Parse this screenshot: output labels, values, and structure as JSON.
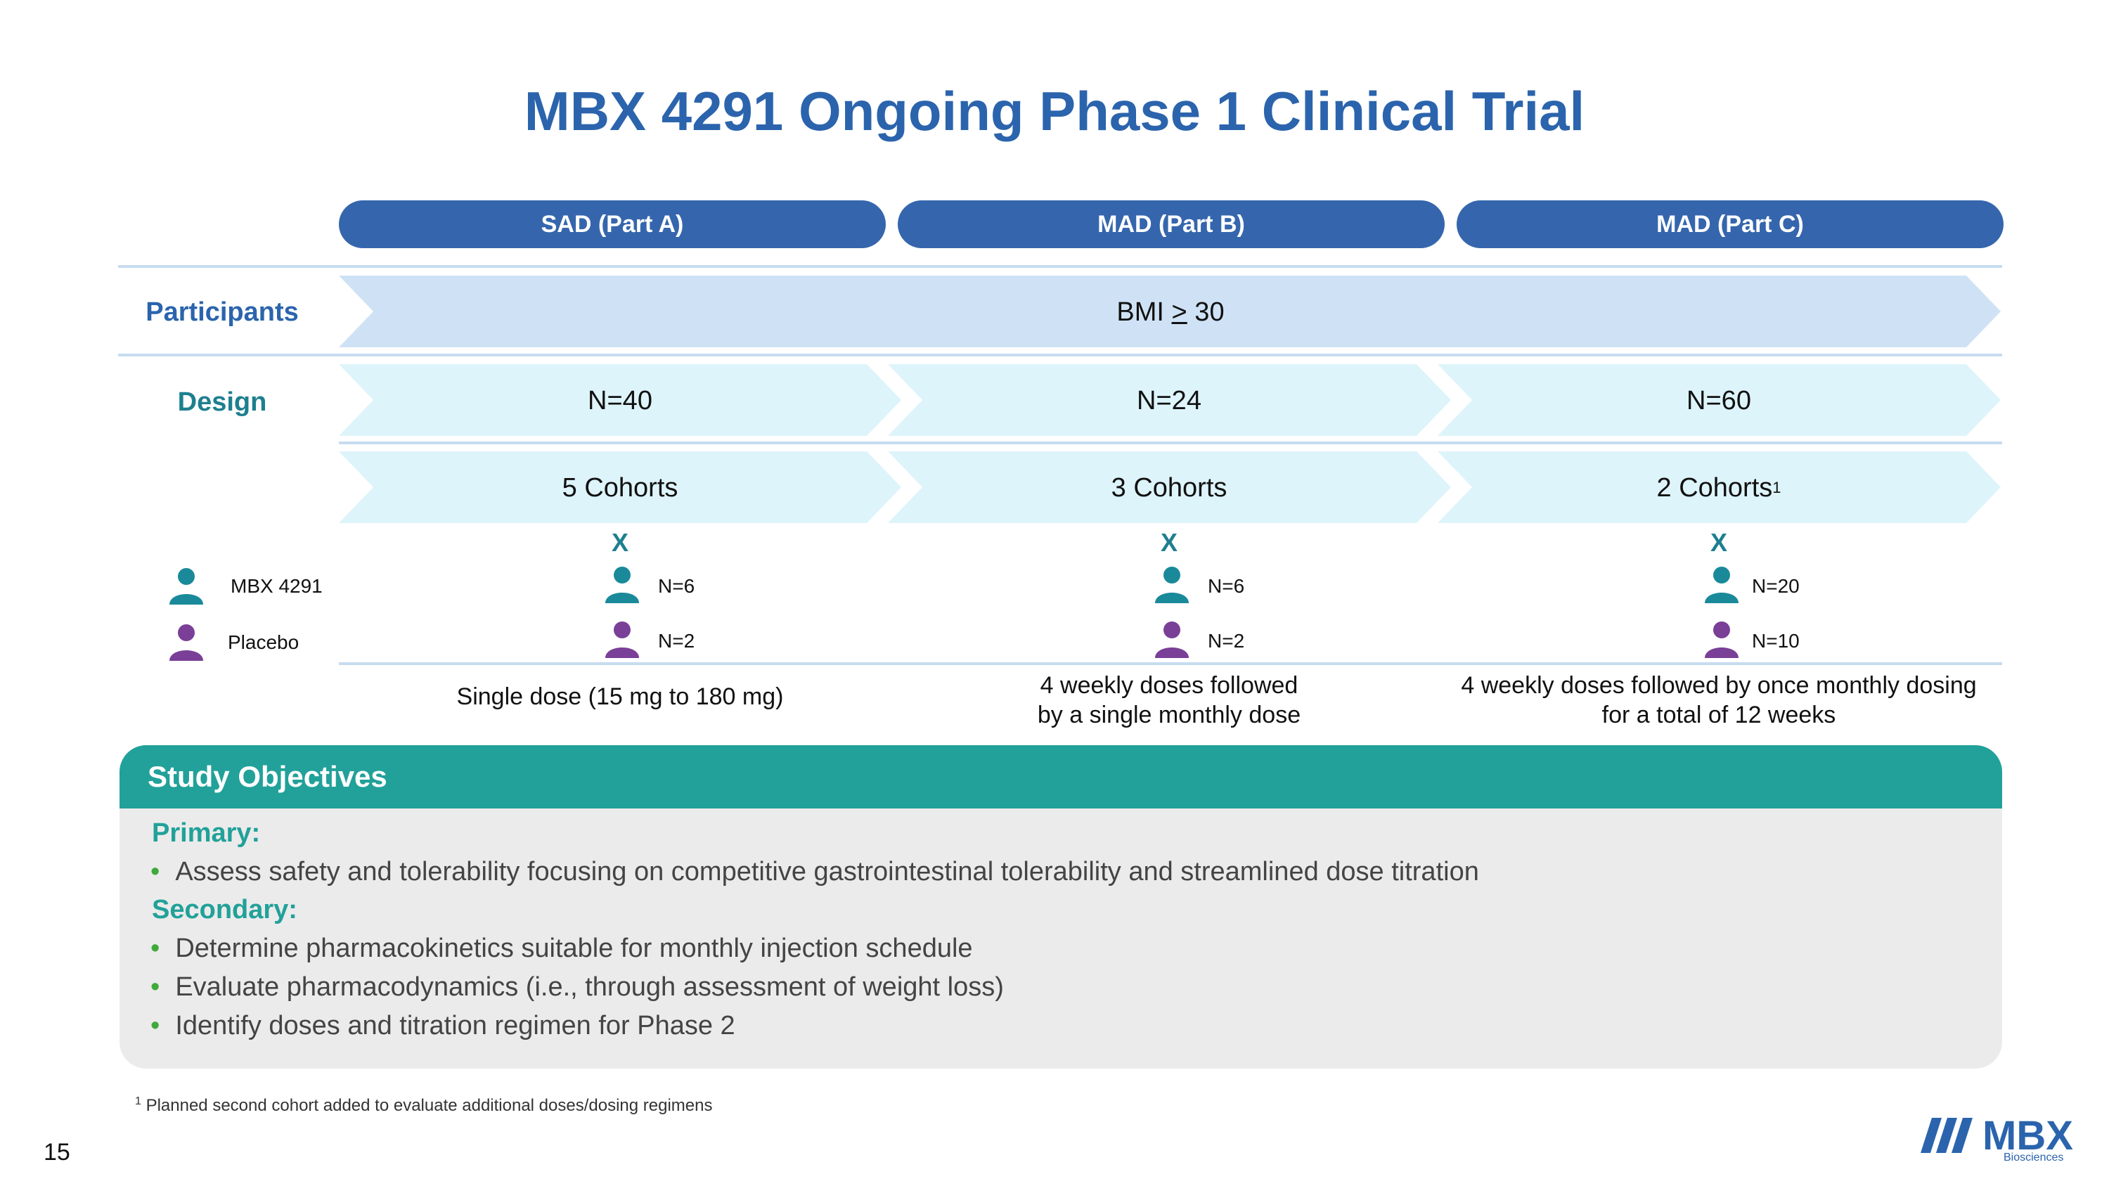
{
  "title": "MBX 4291 Ongoing Phase 1 Clinical Trial",
  "columns": [
    {
      "header": "SAD (Part A)",
      "n": "N=40",
      "cohorts": "5 Cohorts",
      "cohorts_sup": "",
      "mark": "X",
      "mbx_n": "N=6",
      "placebo_n": "N=2",
      "dosing_line1": "Single dose (15 mg to 180 mg)",
      "dosing_line2": ""
    },
    {
      "header": "MAD (Part B)",
      "n": "N=24",
      "cohorts": "3 Cohorts",
      "cohorts_sup": "",
      "mark": "X",
      "mbx_n": "N=6",
      "placebo_n": "N=2",
      "dosing_line1": "4 weekly doses followed",
      "dosing_line2": "by a single monthly dose"
    },
    {
      "header": "MAD (Part C)",
      "n": "N=60",
      "cohorts": "2 Cohorts",
      "cohorts_sup": "1",
      "mark": "X",
      "mbx_n": "N=20",
      "placebo_n": "N=10",
      "dosing_line1": "4 weekly doses followed by once monthly dosing",
      "dosing_line2": "for a total of 12 weeks"
    }
  ],
  "rows": {
    "participants_label": "Participants",
    "participants_value_prefix": "BMI ",
    "participants_value_op": ">",
    "participants_value_suffix": " 30",
    "design_label": "Design"
  },
  "legend": {
    "mbx_label": "MBX 4291",
    "placebo_label": "Placebo"
  },
  "objectives": {
    "title": "Study Objectives",
    "primary_label": "Primary:",
    "primary_items": [
      "Assess safety and tolerability focusing on competitive gastrointestinal tolerability and streamlined dose titration"
    ],
    "secondary_label": "Secondary:",
    "secondary_items": [
      "Determine pharmacokinetics suitable for monthly injection schedule",
      "Evaluate pharmacodynamics (i.e., through assessment of weight loss)",
      "Identify doses and titration regimen for Phase 2"
    ]
  },
  "footnote": {
    "marker": "1",
    "text": "Planned second cohort added to evaluate additional doses/dosing regimens"
  },
  "page_number": "15",
  "logo": {
    "text": "MBX",
    "subtext": "Biosciences"
  },
  "colors": {
    "title_blue": "#2b64ad",
    "header_pill": "#3566ad",
    "participants_fill": "#cfe2f5",
    "design_fill": "#ddf4fa",
    "teal_label": "#1e7f8f",
    "mbx_person": "#1a8a9a",
    "placebo_person": "#7a3f97",
    "objectives_header": "#21a199",
    "objectives_bg": "#ebebeb",
    "bullet_green": "#3fa93a"
  },
  "icons": {
    "person": "person-icon",
    "logo_mark": "mbx-logo-mark"
  }
}
